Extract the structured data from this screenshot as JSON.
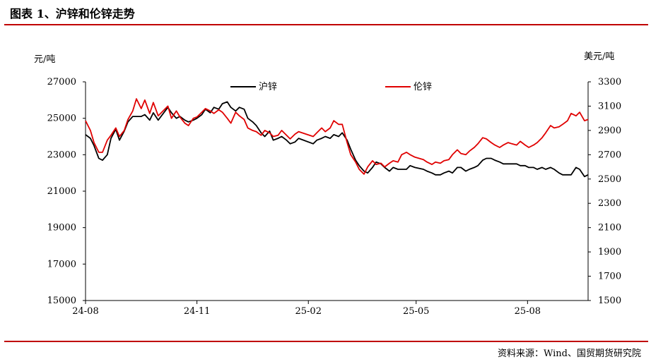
{
  "header": {
    "title": "图表 1、沪锌和伦锌走势"
  },
  "footer": {
    "source": "资料来源：Wind、国贸期货研究院"
  },
  "colors": {
    "rule": "#c00000",
    "shfe": "#000000",
    "lme": "#e00000",
    "axis": "#000000"
  },
  "chart_data": {
    "type": "line",
    "title": "",
    "y_left_label": "元/吨",
    "y_right_label": "美元/吨",
    "ylim_left": [
      15000,
      27000
    ],
    "ylim_right": [
      1500,
      3300
    ],
    "y_left_ticks": [
      27000,
      25000,
      23000,
      21000,
      19000,
      17000,
      15000
    ],
    "y_right_ticks": [
      3300,
      3100,
      2900,
      2700,
      2500,
      2300,
      2100,
      1900,
      1700,
      1500
    ],
    "x_range": [
      "2024-08-01",
      "2025-09-20"
    ],
    "x_ticks": [
      {
        "label": "24-08",
        "date": "2024-08-01"
      },
      {
        "label": "24-11",
        "date": "2024-11-01"
      },
      {
        "label": "25-02",
        "date": "2025-02-01"
      },
      {
        "label": "25-05",
        "date": "2025-05-01"
      },
      {
        "label": "25-08",
        "date": "2025-08-01"
      }
    ],
    "legend_position": "top",
    "grid": false,
    "series": [
      {
        "name": "沪锌",
        "axis": "left",
        "color": "#000000",
        "points": [
          [
            "2024-08-01",
            24100
          ],
          [
            "2024-08-05",
            23900
          ],
          [
            "2024-08-08",
            23500
          ],
          [
            "2024-08-12",
            22800
          ],
          [
            "2024-08-15",
            22700
          ],
          [
            "2024-08-19",
            23000
          ],
          [
            "2024-08-22",
            23900
          ],
          [
            "2024-08-26",
            24400
          ],
          [
            "2024-08-29",
            23800
          ],
          [
            "2024-09-02",
            24300
          ],
          [
            "2024-09-05",
            24800
          ],
          [
            "2024-09-09",
            25100
          ],
          [
            "2024-09-12",
            25100
          ],
          [
            "2024-09-16",
            25100
          ],
          [
            "2024-09-19",
            25200
          ],
          [
            "2024-09-23",
            24900
          ],
          [
            "2024-09-26",
            25300
          ],
          [
            "2024-09-30",
            24900
          ],
          [
            "2024-10-08",
            25600
          ],
          [
            "2024-10-11",
            25300
          ],
          [
            "2024-10-15",
            25000
          ],
          [
            "2024-10-18",
            25100
          ],
          [
            "2024-10-22",
            24900
          ],
          [
            "2024-10-25",
            24800
          ],
          [
            "2024-10-29",
            24900
          ],
          [
            "2024-11-01",
            25000
          ],
          [
            "2024-11-05",
            25200
          ],
          [
            "2024-11-08",
            25500
          ],
          [
            "2024-11-12",
            25300
          ],
          [
            "2024-11-15",
            25600
          ],
          [
            "2024-11-19",
            25500
          ],
          [
            "2024-11-22",
            25800
          ],
          [
            "2024-11-26",
            25900
          ],
          [
            "2024-11-29",
            25600
          ],
          [
            "2024-12-03",
            25400
          ],
          [
            "2024-12-06",
            25600
          ],
          [
            "2024-12-10",
            25500
          ],
          [
            "2024-12-13",
            25000
          ],
          [
            "2024-12-17",
            24800
          ],
          [
            "2024-12-20",
            24600
          ],
          [
            "2024-12-24",
            24200
          ],
          [
            "2024-12-27",
            24000
          ],
          [
            "2024-12-31",
            24300
          ],
          [
            "2025-01-03",
            23800
          ],
          [
            "2025-01-07",
            23900
          ],
          [
            "2025-01-10",
            24000
          ],
          [
            "2025-01-14",
            23800
          ],
          [
            "2025-01-17",
            23600
          ],
          [
            "2025-01-21",
            23700
          ],
          [
            "2025-01-24",
            23900
          ],
          [
            "2025-02-05",
            23600
          ],
          [
            "2025-02-08",
            23800
          ],
          [
            "2025-02-12",
            23900
          ],
          [
            "2025-02-15",
            24000
          ],
          [
            "2025-02-19",
            23900
          ],
          [
            "2025-02-22",
            24100
          ],
          [
            "2025-02-26",
            24000
          ],
          [
            "2025-03-01",
            24200
          ],
          [
            "2025-03-05",
            23800
          ],
          [
            "2025-03-08",
            23300
          ],
          [
            "2025-03-12",
            22700
          ],
          [
            "2025-03-15",
            22400
          ],
          [
            "2025-03-19",
            22100
          ],
          [
            "2025-03-22",
            22000
          ],
          [
            "2025-03-26",
            22300
          ],
          [
            "2025-03-29",
            22600
          ],
          [
            "2025-04-02",
            22500
          ],
          [
            "2025-04-05",
            22300
          ],
          [
            "2025-04-09",
            22100
          ],
          [
            "2025-04-12",
            22300
          ],
          [
            "2025-04-16",
            22200
          ],
          [
            "2025-04-19",
            22200
          ],
          [
            "2025-04-23",
            22200
          ],
          [
            "2025-04-26",
            22400
          ],
          [
            "2025-04-30",
            22300
          ],
          [
            "2025-05-07",
            22200
          ],
          [
            "2025-05-10",
            22100
          ],
          [
            "2025-05-14",
            22000
          ],
          [
            "2025-05-17",
            21900
          ],
          [
            "2025-05-21",
            21900
          ],
          [
            "2025-05-24",
            22000
          ],
          [
            "2025-05-28",
            22100
          ],
          [
            "2025-05-31",
            22000
          ],
          [
            "2025-06-04",
            22300
          ],
          [
            "2025-06-07",
            22300
          ],
          [
            "2025-06-11",
            22100
          ],
          [
            "2025-06-14",
            22200
          ],
          [
            "2025-06-18",
            22300
          ],
          [
            "2025-06-21",
            22400
          ],
          [
            "2025-06-25",
            22700
          ],
          [
            "2025-06-28",
            22800
          ],
          [
            "2025-07-02",
            22800
          ],
          [
            "2025-07-05",
            22700
          ],
          [
            "2025-07-09",
            22600
          ],
          [
            "2025-07-12",
            22500
          ],
          [
            "2025-07-16",
            22500
          ],
          [
            "2025-07-19",
            22500
          ],
          [
            "2025-07-23",
            22500
          ],
          [
            "2025-07-26",
            22400
          ],
          [
            "2025-07-30",
            22400
          ],
          [
            "2025-08-02",
            22300
          ],
          [
            "2025-08-06",
            22300
          ],
          [
            "2025-08-09",
            22200
          ],
          [
            "2025-08-13",
            22300
          ],
          [
            "2025-08-16",
            22200
          ],
          [
            "2025-08-20",
            22300
          ],
          [
            "2025-08-23",
            22200
          ],
          [
            "2025-08-27",
            22000
          ],
          [
            "2025-08-30",
            21900
          ],
          [
            "2025-09-03",
            21900
          ],
          [
            "2025-09-06",
            21900
          ],
          [
            "2025-09-10",
            22300
          ],
          [
            "2025-09-13",
            22200
          ],
          [
            "2025-09-17",
            21800
          ],
          [
            "2025-09-20",
            21900
          ]
        ]
      },
      {
        "name": "伦锌",
        "axis": "right",
        "color": "#e00000",
        "points": [
          [
            "2024-08-01",
            2980
          ],
          [
            "2024-08-05",
            2900
          ],
          [
            "2024-08-08",
            2800
          ],
          [
            "2024-08-12",
            2720
          ],
          [
            "2024-08-15",
            2720
          ],
          [
            "2024-08-19",
            2820
          ],
          [
            "2024-08-22",
            2860
          ],
          [
            "2024-08-26",
            2920
          ],
          [
            "2024-08-29",
            2850
          ],
          [
            "2024-09-02",
            2900
          ],
          [
            "2024-09-05",
            2990
          ],
          [
            "2024-09-09",
            3060
          ],
          [
            "2024-09-12",
            3160
          ],
          [
            "2024-09-16",
            3080
          ],
          [
            "2024-09-19",
            3150
          ],
          [
            "2024-09-23",
            3040
          ],
          [
            "2024-09-26",
            3130
          ],
          [
            "2024-09-30",
            3020
          ],
          [
            "2024-10-08",
            3100
          ],
          [
            "2024-10-11",
            3000
          ],
          [
            "2024-10-15",
            3060
          ],
          [
            "2024-10-18",
            3010
          ],
          [
            "2024-10-22",
            2960
          ],
          [
            "2024-10-25",
            2940
          ],
          [
            "2024-10-29",
            3000
          ],
          [
            "2024-11-01",
            3010
          ],
          [
            "2024-11-05",
            3050
          ],
          [
            "2024-11-08",
            3080
          ],
          [
            "2024-11-12",
            3060
          ],
          [
            "2024-11-15",
            3040
          ],
          [
            "2024-11-19",
            3070
          ],
          [
            "2024-11-22",
            3050
          ],
          [
            "2024-11-26",
            3000
          ],
          [
            "2024-11-29",
            2960
          ],
          [
            "2024-12-03",
            3050
          ],
          [
            "2024-12-06",
            3020
          ],
          [
            "2024-12-10",
            2990
          ],
          [
            "2024-12-13",
            2920
          ],
          [
            "2024-12-17",
            2900
          ],
          [
            "2024-12-20",
            2890
          ],
          [
            "2024-12-24",
            2860
          ],
          [
            "2024-12-27",
            2900
          ],
          [
            "2024-12-31",
            2880
          ],
          [
            "2025-01-03",
            2850
          ],
          [
            "2025-01-07",
            2860
          ],
          [
            "2025-01-10",
            2900
          ],
          [
            "2025-01-14",
            2860
          ],
          [
            "2025-01-17",
            2830
          ],
          [
            "2025-01-21",
            2870
          ],
          [
            "2025-01-24",
            2890
          ],
          [
            "2025-02-05",
            2850
          ],
          [
            "2025-02-08",
            2880
          ],
          [
            "2025-02-12",
            2920
          ],
          [
            "2025-02-15",
            2890
          ],
          [
            "2025-02-19",
            2920
          ],
          [
            "2025-02-22",
            2980
          ],
          [
            "2025-02-26",
            2950
          ],
          [
            "2025-03-01",
            2950
          ],
          [
            "2025-03-05",
            2800
          ],
          [
            "2025-03-08",
            2700
          ],
          [
            "2025-03-12",
            2640
          ],
          [
            "2025-03-15",
            2580
          ],
          [
            "2025-03-19",
            2540
          ],
          [
            "2025-03-22",
            2600
          ],
          [
            "2025-03-26",
            2650
          ],
          [
            "2025-03-29",
            2620
          ],
          [
            "2025-04-02",
            2630
          ],
          [
            "2025-04-05",
            2600
          ],
          [
            "2025-04-09",
            2630
          ],
          [
            "2025-04-12",
            2650
          ],
          [
            "2025-04-16",
            2640
          ],
          [
            "2025-04-19",
            2700
          ],
          [
            "2025-04-23",
            2720
          ],
          [
            "2025-04-26",
            2700
          ],
          [
            "2025-04-30",
            2680
          ],
          [
            "2025-05-07",
            2660
          ],
          [
            "2025-05-10",
            2640
          ],
          [
            "2025-05-14",
            2620
          ],
          [
            "2025-05-17",
            2640
          ],
          [
            "2025-05-21",
            2630
          ],
          [
            "2025-05-24",
            2650
          ],
          [
            "2025-05-28",
            2660
          ],
          [
            "2025-05-31",
            2700
          ],
          [
            "2025-06-04",
            2740
          ],
          [
            "2025-06-07",
            2710
          ],
          [
            "2025-06-11",
            2700
          ],
          [
            "2025-06-14",
            2730
          ],
          [
            "2025-06-18",
            2760
          ],
          [
            "2025-06-21",
            2790
          ],
          [
            "2025-06-25",
            2840
          ],
          [
            "2025-06-28",
            2830
          ],
          [
            "2025-07-02",
            2800
          ],
          [
            "2025-07-05",
            2780
          ],
          [
            "2025-07-09",
            2760
          ],
          [
            "2025-07-12",
            2780
          ],
          [
            "2025-07-16",
            2800
          ],
          [
            "2025-07-19",
            2790
          ],
          [
            "2025-07-23",
            2780
          ],
          [
            "2025-07-26",
            2810
          ],
          [
            "2025-07-30",
            2780
          ],
          [
            "2025-08-02",
            2760
          ],
          [
            "2025-08-06",
            2780
          ],
          [
            "2025-08-09",
            2800
          ],
          [
            "2025-08-13",
            2840
          ],
          [
            "2025-08-16",
            2880
          ],
          [
            "2025-08-20",
            2940
          ],
          [
            "2025-08-23",
            2920
          ],
          [
            "2025-08-27",
            2930
          ],
          [
            "2025-08-30",
            2950
          ],
          [
            "2025-09-03",
            2980
          ],
          [
            "2025-09-06",
            3040
          ],
          [
            "2025-09-10",
            3020
          ],
          [
            "2025-09-13",
            3050
          ],
          [
            "2025-09-17",
            2980
          ],
          [
            "2025-09-20",
            2990
          ]
        ]
      }
    ]
  }
}
